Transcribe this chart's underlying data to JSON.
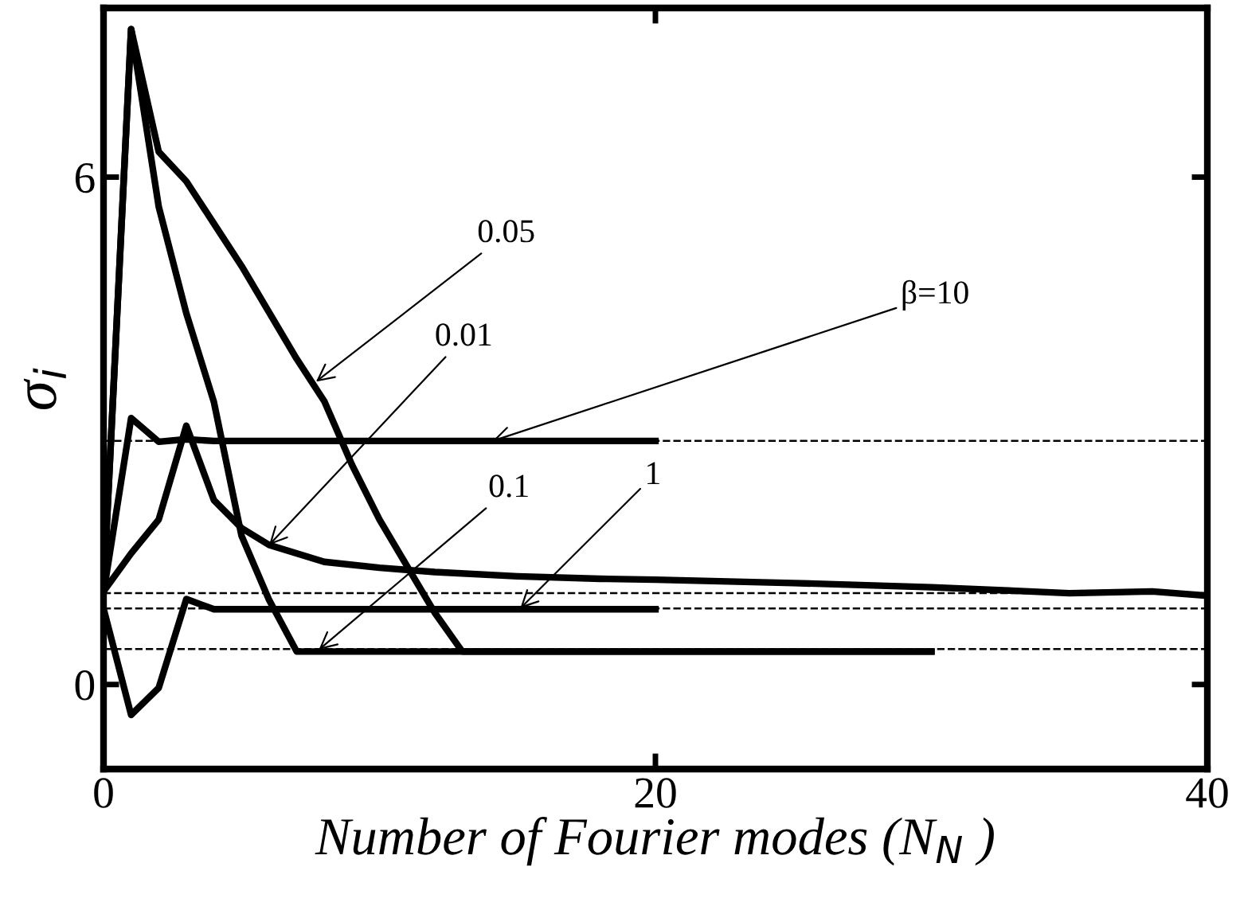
{
  "chart_data": {
    "type": "line",
    "xlabel": "Number of Fourier modes (N$_{N}$ )",
    "ylabel": "σ$_{i}$",
    "xlim": [
      0,
      40
    ],
    "ylim": [
      -1,
      8
    ],
    "xticks": [
      0,
      20,
      40
    ],
    "yticks": [
      0,
      6
    ],
    "grid": false,
    "legend": false,
    "marker": "none",
    "line_style": "solid",
    "series": [
      {
        "color": "#000000",
        "x": [
          0,
          1,
          2,
          3,
          4,
          20
        ],
        "values": [
          1.08,
          3.15,
          2.87,
          2.9,
          2.88,
          2.88
        ]
      },
      {
        "color": "#000000",
        "x": [
          0,
          1,
          2,
          3,
          4,
          5,
          6,
          8,
          10,
          12,
          15,
          18,
          20,
          25,
          30,
          35,
          38,
          40
        ],
        "values": [
          1.1,
          1.55,
          1.95,
          3.06,
          2.18,
          1.85,
          1.65,
          1.45,
          1.38,
          1.33,
          1.28,
          1.25,
          1.24,
          1.2,
          1.15,
          1.08,
          1.1,
          1.05
        ]
      },
      {
        "color": "#000000",
        "x": [
          0,
          1,
          2,
          3,
          4,
          20
        ],
        "values": [
          0.9,
          -0.36,
          -0.04,
          1.01,
          0.89,
          0.89
        ]
      },
      {
        "color": "#000000",
        "x": [
          0,
          1,
          2,
          3,
          4,
          5,
          6,
          7,
          30
        ],
        "values": [
          1.1,
          7.75,
          5.65,
          4.39,
          3.34,
          1.76,
          1.0,
          0.39,
          0.39
        ]
      },
      {
        "color": "#000000",
        "x": [
          0,
          1,
          2,
          3,
          4,
          5,
          6,
          7,
          8,
          9,
          10,
          11,
          12,
          13,
          30
        ],
        "values": [
          1.1,
          7.75,
          6.3,
          5.95,
          5.45,
          4.95,
          4.4,
          3.85,
          3.35,
          2.6,
          1.95,
          1.4,
          0.85,
          0.39,
          0.39
        ]
      }
    ],
    "ref_lines": [
      {
        "axis": "y",
        "value": 2.88,
        "color": "#000000",
        "line_style": "dashed"
      },
      {
        "axis": "y",
        "value": 1.08,
        "color": "#000000",
        "line_style": "dashed"
      },
      {
        "axis": "y",
        "value": 0.9,
        "color": "#000000",
        "line_style": "dashed"
      },
      {
        "axis": "y",
        "value": 0.42,
        "color": "#000000",
        "line_style": "dashed"
      }
    ],
    "annotations": [
      {
        "text": "0.05",
        "x": 7.7,
        "y": 3.58
      },
      {
        "text": "β=10",
        "x": 14.1,
        "y": 2.88
      },
      {
        "text": "0.01",
        "x": 6,
        "y": 1.65
      },
      {
        "text": "0.1",
        "x": 7.8,
        "y": 0.41
      },
      {
        "text": "1",
        "x": 15.1,
        "y": 0.9
      }
    ]
  }
}
